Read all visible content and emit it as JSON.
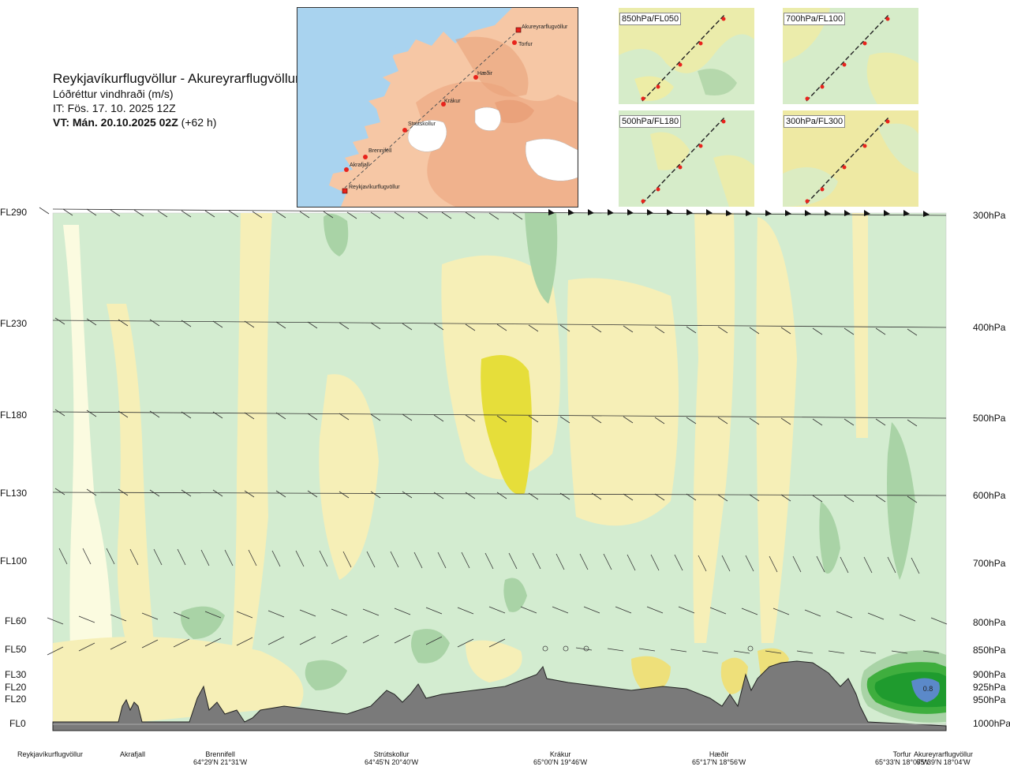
{
  "title": {
    "route": "Reykjavíkurflugvöllur - Akureyrarflugvöllur",
    "parameter": "Lóðréttur vindhraði (m/s)",
    "initial_time": "IT: Fös. 17. 10. 2025 12Z",
    "valid_time": "VT: Mán. 20.10.2025 02Z",
    "lead": "(+62 h)"
  },
  "route_map": {
    "waypoints": [
      "Akureyrarflugvöllur",
      "Torfur",
      "Hæðir",
      "Krákur",
      "Strútskollur",
      "Brennifell",
      "Akrafjall",
      "Reykjavíkurflugvöllur"
    ]
  },
  "mini_maps": [
    {
      "label": "850hPa/FL050"
    },
    {
      "label": "700hPa/FL100"
    },
    {
      "label": "500hPa/FL180"
    },
    {
      "label": "300hPa/FL300"
    }
  ],
  "flight_levels": [
    "FL290",
    "FL230",
    "FL180",
    "FL130",
    "FL100",
    "FL60",
    "FL50",
    "FL30",
    "FL20",
    "FL20",
    "FL0"
  ],
  "pressure_levels": [
    "300hPa",
    "400hPa",
    "500hPa",
    "600hPa",
    "700hPa",
    "800hPa",
    "850hPa",
    "900hPa",
    "925hPa",
    "950hPa",
    "1000hPa"
  ],
  "contour_annotation": "0.8",
  "colors": {
    "sea": "#a9d3ef",
    "land_low": "#f6c7a5",
    "land_high": "#eaa17a",
    "ice": "#ffffff",
    "terrain": "#7a7a7a",
    "field_neutral": "#d3ecd0",
    "field_weak_down": "#f6efb7",
    "field_down": "#eee07a",
    "field_strong_down": "#e6de3a",
    "field_up": "#a9d3a6",
    "field_strong_up": "#1f9b2e",
    "field_max_up": "#5b89c9",
    "route_marker": "#e8231c"
  },
  "locations": [
    {
      "name": "Reykjavíkurflugvöllur",
      "coord": ""
    },
    {
      "name": "Akrafjall",
      "coord": ""
    },
    {
      "name": "Brennifell",
      "coord": "64°29'N 21°31'W"
    },
    {
      "name": "Strútskollur",
      "coord": "64°45'N 20°40'W"
    },
    {
      "name": "Krákur",
      "coord": "65°00'N 19°46'W"
    },
    {
      "name": "Hæðir",
      "coord": "65°17'N 18°56'W"
    },
    {
      "name": "Torfur",
      "coord": "65°33'N 18°07'W"
    },
    {
      "name": "Akureyrarflugvöllur",
      "coord": "65°39'N 18°04'W"
    }
  ]
}
